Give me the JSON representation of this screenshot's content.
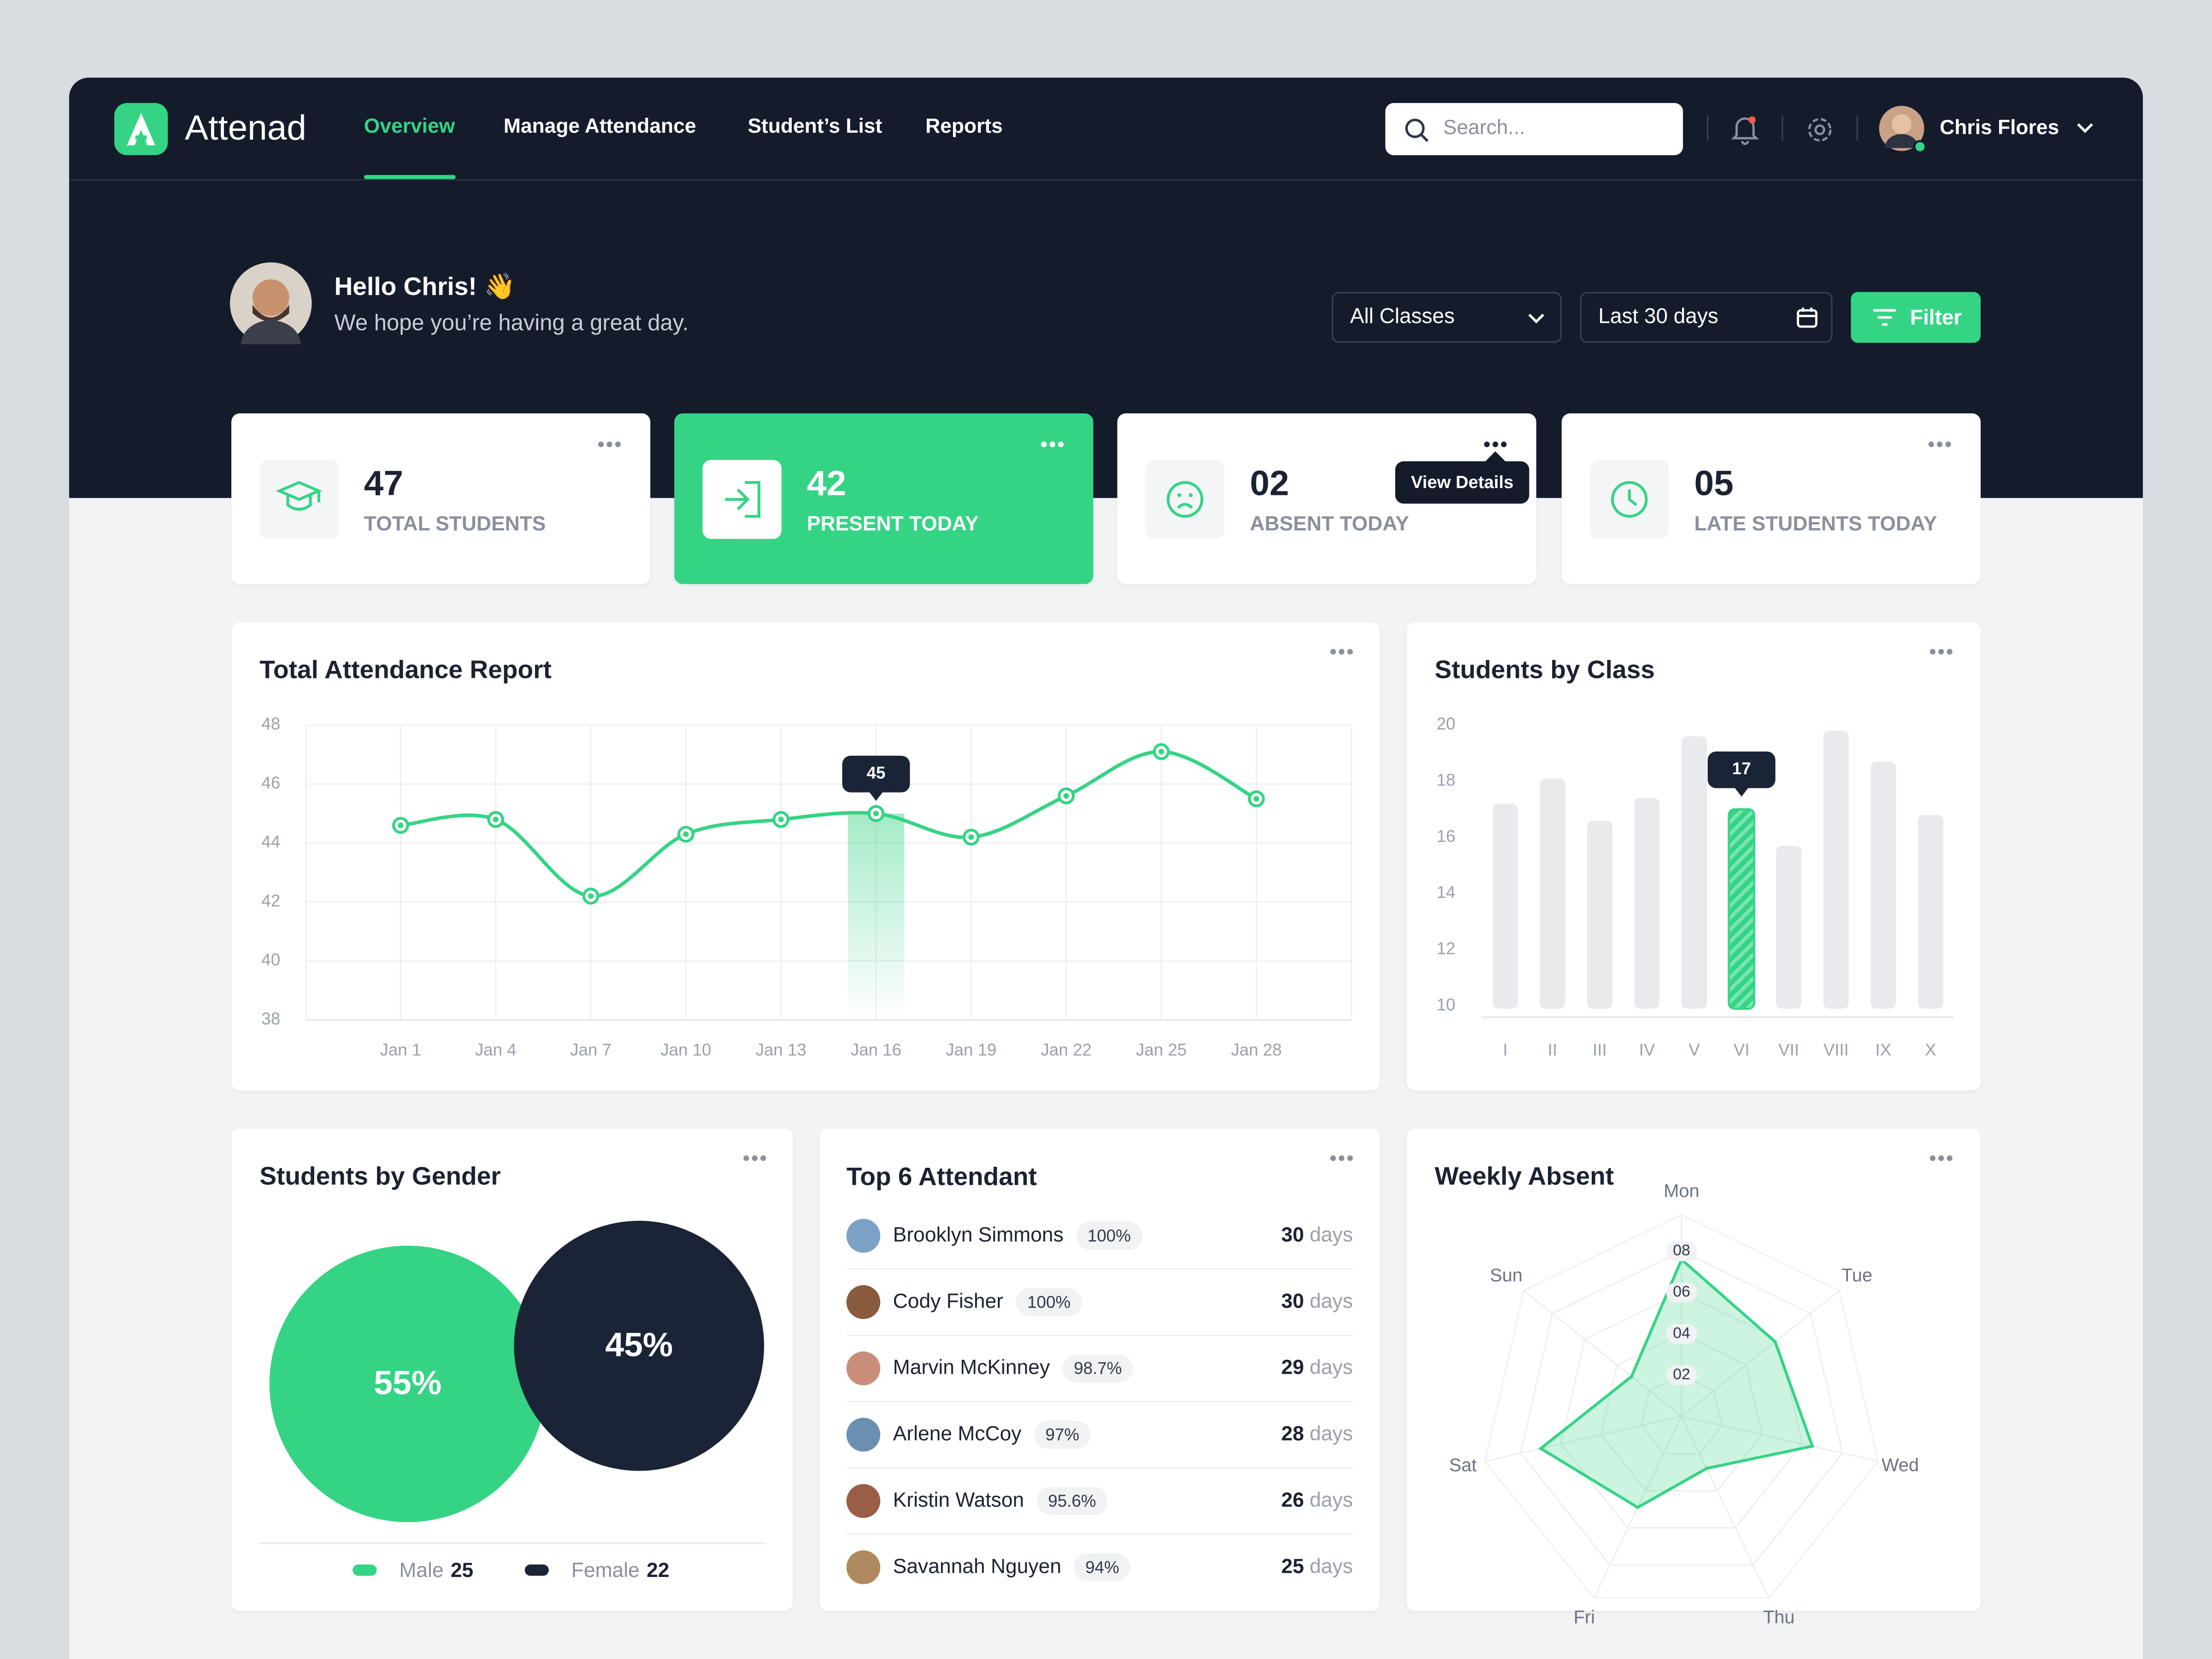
{
  "nav": {
    "brand": "Attenad",
    "links": [
      "Overview",
      "Manage Attendance",
      "Student’s List",
      "Reports"
    ],
    "active": 0,
    "search_placeholder": "Search...",
    "user": "Chris Flores"
  },
  "greeting": {
    "title": "Hello Chris! 👋",
    "subtitle": "We hope you’re having a great day."
  },
  "filters": {
    "class": "All Classes",
    "period": "Last 30 days",
    "button": "Filter"
  },
  "stats": [
    {
      "value": "47",
      "label": "TOTAL STUDENTS"
    },
    {
      "value": "42",
      "label": "PRESENT TODAY"
    },
    {
      "value": "02",
      "label": "ABSENT TODAY"
    },
    {
      "value": "05",
      "label": "LATE STUDENTS TODAY"
    }
  ],
  "stats_active": 1,
  "stats_tooltip": "View Details",
  "attendance": {
    "type": "line",
    "title": "Total Attendance Report",
    "categories": [
      "Jan 1",
      "Jan 4",
      "Jan 7",
      "Jan 10",
      "Jan 13",
      "Jan 16",
      "Jan 19",
      "Jan 22",
      "Jan 25",
      "Jan 28"
    ],
    "values": [
      44.6,
      44.8,
      42.2,
      44.3,
      44.8,
      45,
      44.2,
      45.6,
      47.1,
      45.5
    ],
    "highlight": 5,
    "color": "#34d484",
    "ylim": [
      38,
      48
    ],
    "yticks": [
      38,
      40,
      42,
      44,
      46,
      48
    ],
    "grid": true
  },
  "classes": {
    "type": "bar",
    "title": "Students by Class",
    "categories": [
      "I",
      "II",
      "III",
      "IV",
      "V",
      "VI",
      "VII",
      "VIII",
      "IX",
      "X"
    ],
    "values": [
      17.2,
      18.1,
      16.6,
      17.4,
      19.6,
      17,
      15.7,
      19.8,
      18.7,
      16.8
    ],
    "highlight": 5,
    "color": "#e9eaee",
    "highlight_color": "#34d484",
    "ylim": [
      10,
      20
    ],
    "yticks": [
      10,
      12,
      14,
      16,
      18,
      20
    ]
  },
  "gender": {
    "type": "bubble",
    "title": "Students by Gender",
    "categories": [
      "Male",
      "Female"
    ],
    "values": [
      55,
      45
    ],
    "value_labels": [
      "55%",
      "45%"
    ],
    "counts": [
      25,
      22
    ],
    "colors": [
      "#34d484",
      "#1b2436"
    ]
  },
  "top_attendants": {
    "title": "Top 6 Attendant",
    "days_unit": "days",
    "rows": [
      {
        "name": "Brooklyn Simmons",
        "percent": "100%",
        "days": 30
      },
      {
        "name": "Cody Fisher",
        "percent": "100%",
        "days": 30
      },
      {
        "name": "Marvin McKinney",
        "percent": "98.7%",
        "days": 29
      },
      {
        "name": "Arlene McCoy",
        "percent": "97%",
        "days": 28
      },
      {
        "name": "Kristin Watson",
        "percent": "95.6%",
        "days": 26
      },
      {
        "name": "Savannah Nguyen",
        "percent": "94%",
        "days": 25
      }
    ]
  },
  "weekly_absent": {
    "type": "radar",
    "title": "Weekly Absent",
    "categories": [
      "Mon",
      "Tue",
      "Wed",
      "Thu",
      "Fri",
      "Sat",
      "Sun"
    ],
    "values": [
      7.6,
      5.8,
      6.5,
      2.8,
      4.9,
      7,
      3.1
    ],
    "color": "#34d484",
    "rlim": [
      0,
      8
    ],
    "rticks": [
      {
        "value": 2,
        "label": "02"
      },
      {
        "value": 4,
        "label": "04"
      },
      {
        "value": 6,
        "label": "06"
      },
      {
        "value": 8,
        "label": "08"
      }
    ]
  }
}
